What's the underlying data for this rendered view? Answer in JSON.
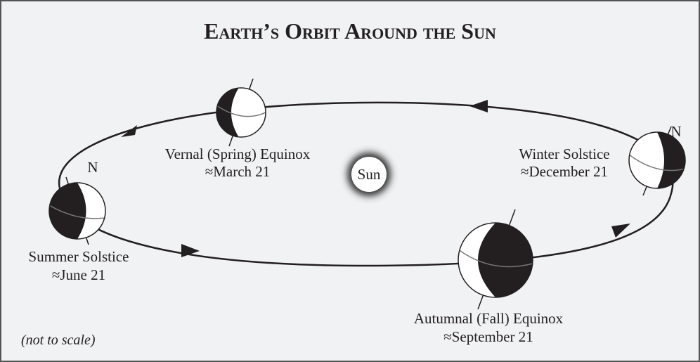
{
  "title": "Earth’s Orbit Around the Sun",
  "sun": "Sun",
  "note": "(not to scale)",
  "nodes": [
    {
      "name": "Vernal (Spring) Equinox",
      "date": "≈March 21"
    },
    {
      "name": "Winter Solstice",
      "date": "≈December 21",
      "pole": "N"
    },
    {
      "name": "Summer Solstice",
      "date": "≈June 21",
      "pole": "N"
    },
    {
      "name": "Autumnal (Fall) Equinox",
      "date": "≈September 21"
    }
  ]
}
